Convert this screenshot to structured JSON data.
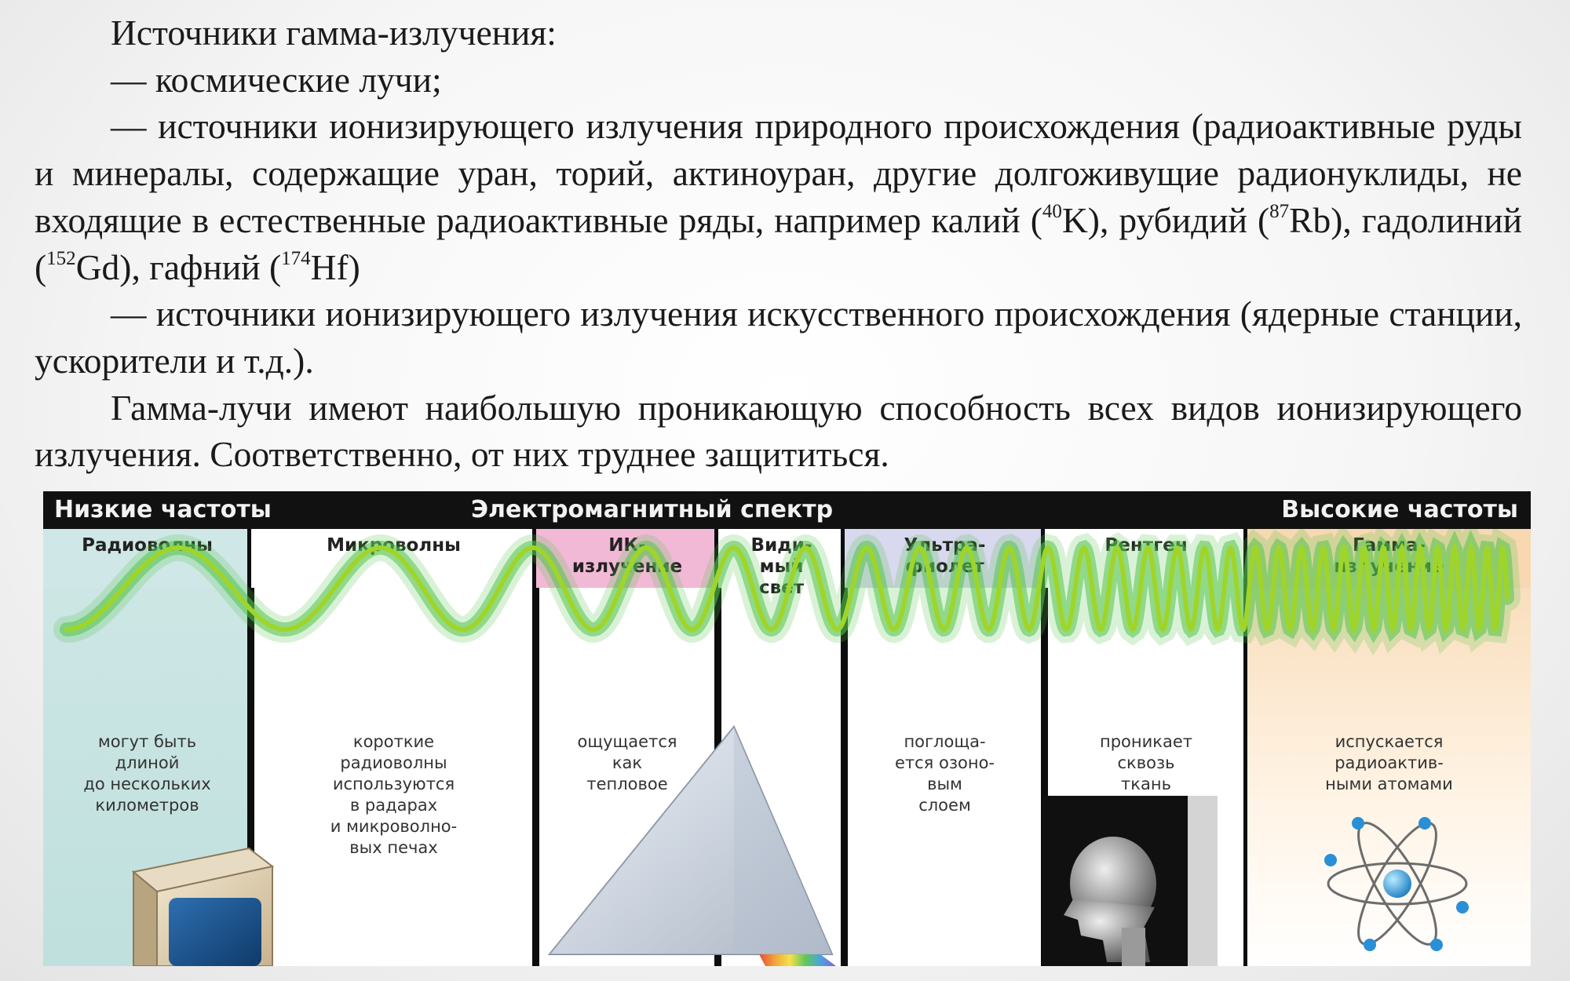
{
  "text": {
    "title": "Источники гамма-излучения:",
    "item1": "— космические лучи;",
    "item2_pre": "— источники ионизирующего излучения природного происхождения (радиоактивные руды и минералы, содержащие уран, торий, актиноуран, другие долгоживущие радионуклиды, не входящие в естественные радиоактивные ряды, например калий (",
    "k_mass": "40",
    "k_tail": "K), рубидий (",
    "rb_mass": "87",
    "rb_tail": "Rb), гадолиний (",
    "gd_mass": "152",
    "gd_tail": "Gd), гафний (",
    "hf_mass": "174",
    "hf_tail": "Hf)",
    "item3": "— источники ионизирующего излучения искусственного происхождения (ядерные станции, ускорители и т.д.).",
    "para2": "Гамма-лучи имеют наибольшую проникающую способность всех видов ионизирующего излучения. Соответственно, от них труднее защититься."
  },
  "spectrum": {
    "header_left": "Низкие частоты",
    "header_center": "Электромагнитный спектр",
    "header_right": "Высокие частоты",
    "bands": [
      {
        "title": "Радиоволны",
        "desc": "могут быть\nдлиной\nдо нескольких\nкилометров",
        "color": "#cfe7e6"
      },
      {
        "title": "Микроволны",
        "desc": "короткие\nрадиоволны\nиспользуются\nв радарах\nи микроволно-\nвых печах",
        "color": "#ffffff"
      },
      {
        "title": "ИК-\nизлучение",
        "desc": "ощущается\nкак\nтепловое",
        "color": "#f2b9d6"
      },
      {
        "title": "Види-\nмый\nсвет",
        "desc": "",
        "color": "#ffffff"
      },
      {
        "title": "Ультра-\nфиолет",
        "desc": "поглоща-\nется озоно-\nвым\nслоем",
        "color": "#d8d8ee"
      },
      {
        "title": "Рентген",
        "desc": "проникает\nсквозь\nткань",
        "color": "#ffffff"
      },
      {
        "title": "Гамма-\nизлучение",
        "desc": "испускается\nрадиоактив-\nными атомами",
        "color": "#f7d8b0"
      }
    ],
    "wave_color": "#9fd52a",
    "wave_glow": "#53c44b"
  }
}
